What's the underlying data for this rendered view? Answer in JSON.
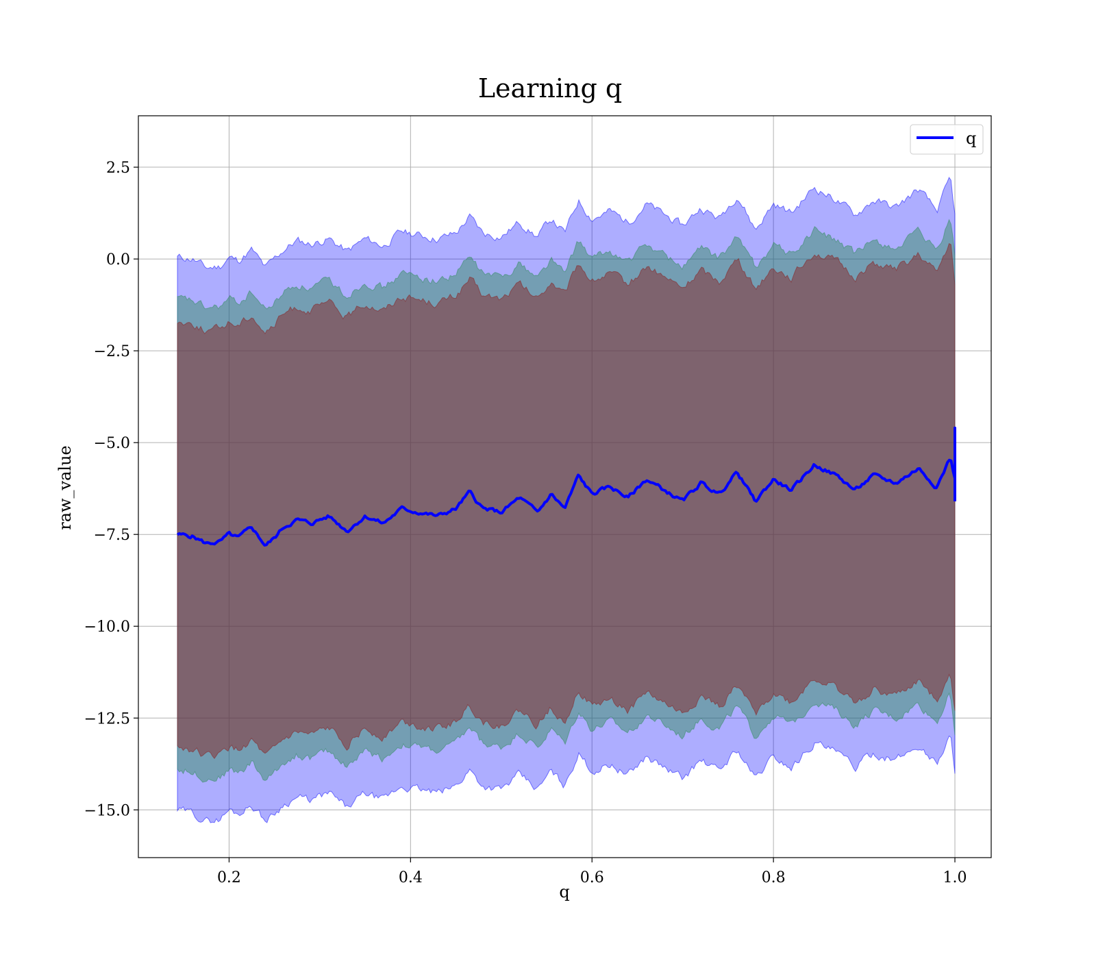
{
  "chart_data": {
    "type": "line",
    "title": "Learning q",
    "xlabel": "q",
    "ylabel": "raw_value",
    "xlim": [
      0.1,
      1.04
    ],
    "ylim": [
      -16.3,
      3.9
    ],
    "xticks": [
      0.2,
      0.4,
      0.6,
      0.8,
      1.0
    ],
    "xtick_labels": [
      "0.2",
      "0.4",
      "0.6",
      "0.8",
      "1.0"
    ],
    "yticks": [
      2.5,
      0.0,
      -2.5,
      -5.0,
      -7.5,
      -10.0,
      -12.5,
      -15.0
    ],
    "ytick_labels": [
      "2.5",
      "0.0",
      "−2.5",
      "−5.0",
      "−7.5",
      "−10.0",
      "−12.5",
      "−15.0"
    ],
    "grid": true,
    "legend": {
      "position": "top-right",
      "entries": [
        "q"
      ]
    },
    "mean_series": {
      "name": "q",
      "color": "#0000ff",
      "x": [
        0.143,
        0.16,
        0.175,
        0.19,
        0.2,
        0.21,
        0.225,
        0.24,
        0.25,
        0.26,
        0.275,
        0.29,
        0.31,
        0.33,
        0.35,
        0.37,
        0.39,
        0.41,
        0.43,
        0.45,
        0.465,
        0.48,
        0.5,
        0.52,
        0.54,
        0.555,
        0.57,
        0.585,
        0.6,
        0.62,
        0.64,
        0.66,
        0.68,
        0.7,
        0.72,
        0.74,
        0.76,
        0.78,
        0.8,
        0.82,
        0.845,
        0.87,
        0.89,
        0.91,
        0.935,
        0.96,
        0.98,
        0.995,
        1.0
      ],
      "y": [
        -7.5,
        -7.55,
        -7.75,
        -7.7,
        -7.5,
        -7.6,
        -7.3,
        -7.8,
        -7.6,
        -7.3,
        -7.1,
        -7.2,
        -7.0,
        -7.4,
        -7.0,
        -7.2,
        -6.8,
        -6.9,
        -7.0,
        -6.8,
        -6.35,
        -6.8,
        -6.9,
        -6.5,
        -6.9,
        -6.4,
        -6.8,
        -5.9,
        -6.4,
        -6.2,
        -6.5,
        -6.0,
        -6.3,
        -6.6,
        -6.1,
        -6.4,
        -5.8,
        -6.6,
        -6.0,
        -6.3,
        -5.6,
        -5.9,
        -6.3,
        -5.9,
        -6.1,
        -5.7,
        -6.2,
        -5.4,
        -6.0
      ]
    },
    "bands": [
      {
        "color": "#0000ff",
        "opacity": 0.32,
        "x": [
          0.143,
          0.16,
          0.175,
          0.19,
          0.2,
          0.21,
          0.225,
          0.24,
          0.25,
          0.26,
          0.275,
          0.29,
          0.31,
          0.33,
          0.35,
          0.37,
          0.39,
          0.41,
          0.43,
          0.45,
          0.465,
          0.48,
          0.5,
          0.52,
          0.54,
          0.555,
          0.57,
          0.585,
          0.6,
          0.62,
          0.64,
          0.66,
          0.68,
          0.7,
          0.72,
          0.74,
          0.76,
          0.78,
          0.8,
          0.82,
          0.845,
          0.87,
          0.89,
          0.91,
          0.935,
          0.96,
          0.98,
          0.995,
          1.0
        ],
        "upper": [
          0.05,
          0.0,
          -0.25,
          -0.2,
          0.05,
          -0.05,
          0.25,
          -0.25,
          0.0,
          0.25,
          0.5,
          0.4,
          0.55,
          0.2,
          0.55,
          0.35,
          0.75,
          0.65,
          0.55,
          0.7,
          1.15,
          0.7,
          0.6,
          1.0,
          0.6,
          1.1,
          0.7,
          1.6,
          1.1,
          1.3,
          1.0,
          1.5,
          1.2,
          0.9,
          1.4,
          1.1,
          1.75,
          0.8,
          1.5,
          1.25,
          1.95,
          1.6,
          1.2,
          1.6,
          1.4,
          1.9,
          1.3,
          2.2,
          1.2
        ],
        "lower": [
          -15.0,
          -15.1,
          -15.3,
          -15.25,
          -15.0,
          -15.1,
          -14.85,
          -15.3,
          -15.1,
          -14.85,
          -14.65,
          -14.75,
          -14.55,
          -14.95,
          -14.55,
          -14.75,
          -14.35,
          -14.45,
          -14.55,
          -14.35,
          -13.9,
          -14.35,
          -14.45,
          -14.05,
          -14.45,
          -13.95,
          -14.35,
          -13.45,
          -13.95,
          -13.75,
          -14.05,
          -13.55,
          -13.85,
          -14.15,
          -13.65,
          -13.95,
          -13.35,
          -14.15,
          -13.55,
          -13.85,
          -13.15,
          -13.45,
          -13.85,
          -13.45,
          -13.65,
          -13.25,
          -13.75,
          -12.95,
          -14.1
        ]
      },
      {
        "color": "#2e8b57",
        "opacity": 0.45,
        "x": [
          0.143,
          0.16,
          0.175,
          0.19,
          0.2,
          0.21,
          0.225,
          0.24,
          0.25,
          0.26,
          0.275,
          0.29,
          0.31,
          0.33,
          0.35,
          0.37,
          0.39,
          0.41,
          0.43,
          0.45,
          0.465,
          0.48,
          0.5,
          0.52,
          0.54,
          0.555,
          0.57,
          0.585,
          0.6,
          0.62,
          0.64,
          0.66,
          0.68,
          0.7,
          0.72,
          0.74,
          0.76,
          0.78,
          0.8,
          0.82,
          0.845,
          0.87,
          0.89,
          0.91,
          0.935,
          0.96,
          0.98,
          0.995,
          1.0
        ],
        "upper": [
          -1.1,
          -1.15,
          -1.35,
          -1.3,
          -1.1,
          -1.2,
          -0.9,
          -1.4,
          -1.2,
          -0.9,
          -0.7,
          -0.8,
          -0.6,
          -1.0,
          -0.6,
          -0.8,
          -0.4,
          -0.5,
          -0.6,
          -0.4,
          0.05,
          -0.4,
          -0.5,
          -0.1,
          -0.5,
          0.0,
          -0.4,
          0.5,
          0.0,
          0.2,
          -0.1,
          0.4,
          0.1,
          -0.2,
          0.3,
          0.0,
          0.6,
          -0.2,
          0.4,
          0.1,
          0.8,
          0.5,
          0.1,
          0.5,
          0.3,
          0.7,
          0.2,
          1.1,
          0.1
        ],
        "lower": [
          -13.9,
          -13.95,
          -14.15,
          -14.1,
          -13.9,
          -14.0,
          -13.7,
          -14.2,
          -14.0,
          -13.7,
          -13.5,
          -13.6,
          -13.4,
          -13.8,
          -13.4,
          -13.6,
          -13.2,
          -13.3,
          -13.4,
          -13.2,
          -12.75,
          -13.2,
          -13.3,
          -12.9,
          -13.3,
          -12.8,
          -13.2,
          -12.3,
          -12.8,
          -12.6,
          -12.9,
          -12.4,
          -12.7,
          -13.0,
          -12.5,
          -12.8,
          -12.2,
          -13.0,
          -12.4,
          -12.7,
          -12.0,
          -12.3,
          -12.7,
          -12.3,
          -12.5,
          -12.1,
          -12.6,
          -11.8,
          -12.9
        ]
      },
      {
        "color": "#8b1a1a",
        "opacity": 0.45,
        "x": [
          0.143,
          0.16,
          0.175,
          0.19,
          0.2,
          0.21,
          0.225,
          0.24,
          0.25,
          0.26,
          0.275,
          0.29,
          0.31,
          0.33,
          0.35,
          0.37,
          0.39,
          0.41,
          0.43,
          0.45,
          0.465,
          0.48,
          0.5,
          0.52,
          0.54,
          0.555,
          0.57,
          0.585,
          0.6,
          0.62,
          0.64,
          0.66,
          0.68,
          0.7,
          0.72,
          0.74,
          0.76,
          0.78,
          0.8,
          0.82,
          0.845,
          0.87,
          0.89,
          0.91,
          0.935,
          0.96,
          0.98,
          0.995,
          1.0
        ],
        "upper": [
          -1.7,
          -1.75,
          -1.95,
          -1.9,
          -1.7,
          -1.8,
          -1.5,
          -2.0,
          -1.8,
          -1.5,
          -1.3,
          -1.4,
          -1.2,
          -1.6,
          -1.2,
          -1.4,
          -1.0,
          -1.1,
          -1.2,
          -1.0,
          -0.55,
          -1.0,
          -1.1,
          -0.7,
          -1.1,
          -0.6,
          -1.0,
          -0.1,
          -0.6,
          -0.4,
          -0.7,
          -0.2,
          -0.5,
          -0.8,
          -0.3,
          -0.6,
          0.0,
          -0.8,
          -0.2,
          -0.5,
          0.2,
          -0.1,
          -0.5,
          -0.1,
          -0.3,
          0.1,
          -0.4,
          0.5,
          -0.8
        ],
        "lower": [
          -13.3,
          -13.35,
          -13.55,
          -13.5,
          -13.3,
          -13.4,
          -13.1,
          -13.6,
          -13.4,
          -13.1,
          -12.9,
          -13.0,
          -12.8,
          -13.2,
          -12.8,
          -13.0,
          -12.6,
          -12.7,
          -12.8,
          -12.6,
          -12.15,
          -12.6,
          -12.7,
          -12.3,
          -12.7,
          -12.2,
          -12.6,
          -11.7,
          -12.2,
          -12.0,
          -12.3,
          -11.8,
          -12.1,
          -12.4,
          -11.9,
          -12.2,
          -11.6,
          -12.4,
          -11.8,
          -12.1,
          -11.4,
          -11.7,
          -12.1,
          -11.7,
          -11.9,
          -11.5,
          -12.0,
          -11.2,
          -12.3
        ]
      }
    ]
  }
}
